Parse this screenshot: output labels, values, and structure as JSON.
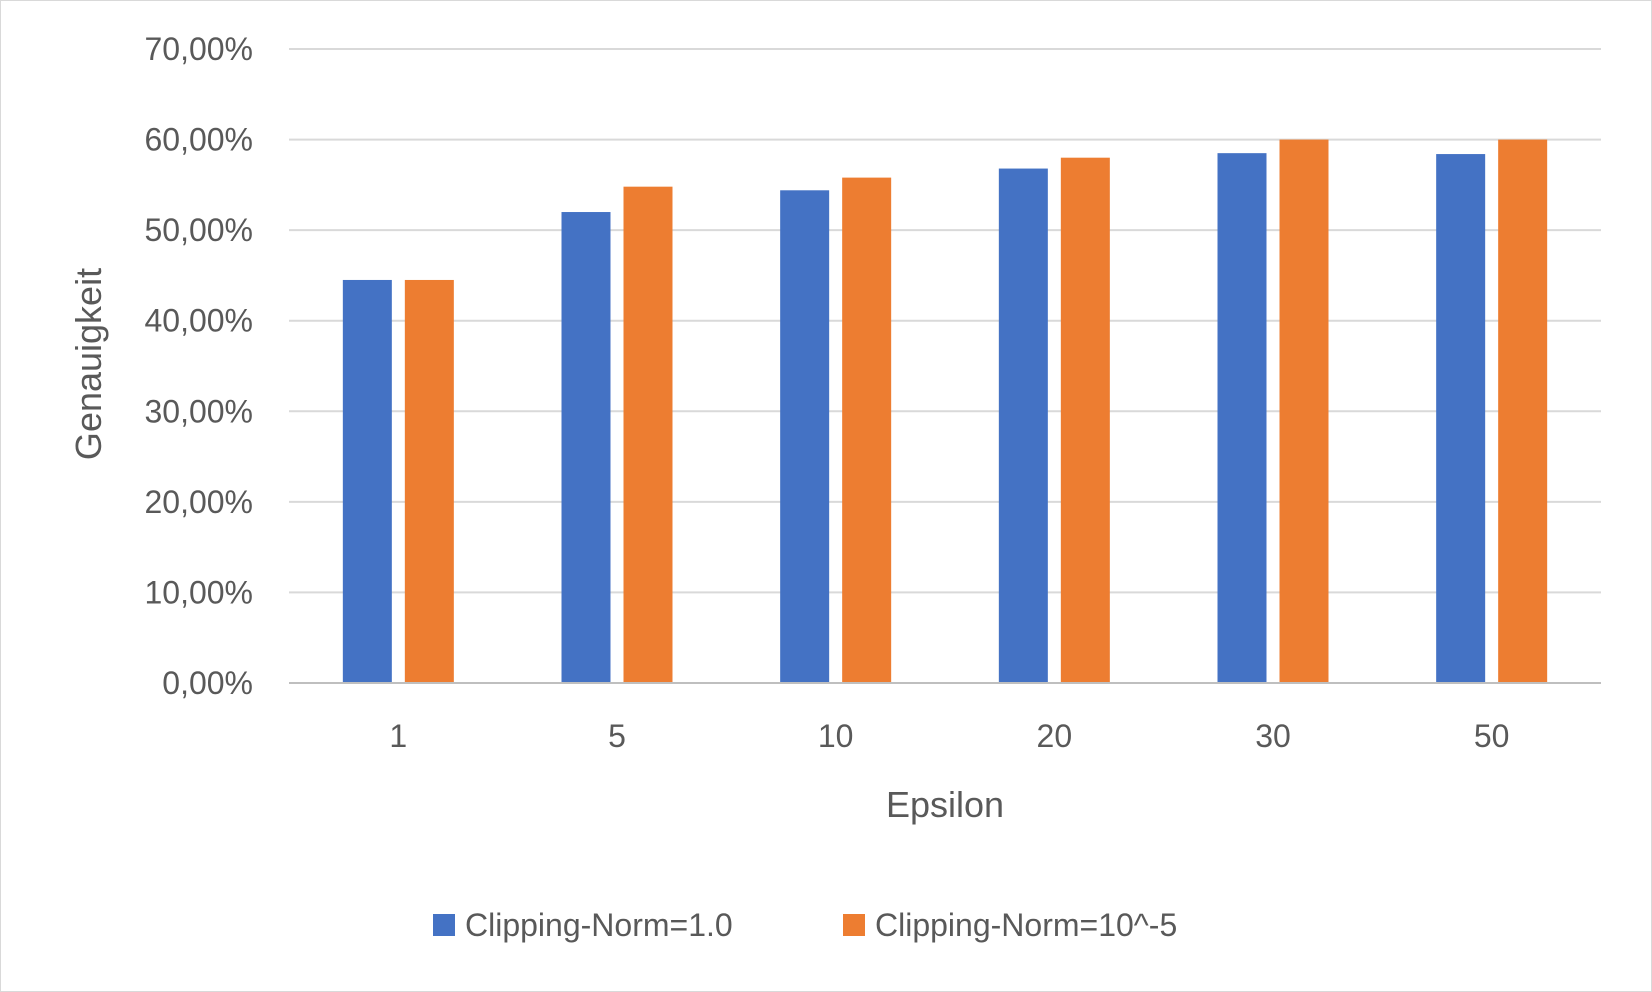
{
  "chart_data": {
    "type": "bar",
    "title": "",
    "xlabel": "Epsilon",
    "ylabel": "Genauigkeit",
    "categories": [
      "1",
      "5",
      "10",
      "20",
      "30",
      "50"
    ],
    "series": [
      {
        "name": "Clipping-Norm=1.0",
        "color": "#4472C4",
        "values": [
          0.445,
          0.52,
          0.544,
          0.568,
          0.585,
          0.584
        ]
      },
      {
        "name": "Clipping-Norm=10^-5",
        "color": "#ED7D31",
        "values": [
          0.445,
          0.548,
          0.558,
          0.58,
          0.6,
          0.6
        ]
      }
    ],
    "ylim": [
      0,
      0.7
    ],
    "yticks": [
      "0,00%",
      "10,00%",
      "20,00%",
      "30,00%",
      "40,00%",
      "50,00%",
      "60,00%",
      "70,00%"
    ],
    "grid": true,
    "legend_position": "bottom"
  }
}
